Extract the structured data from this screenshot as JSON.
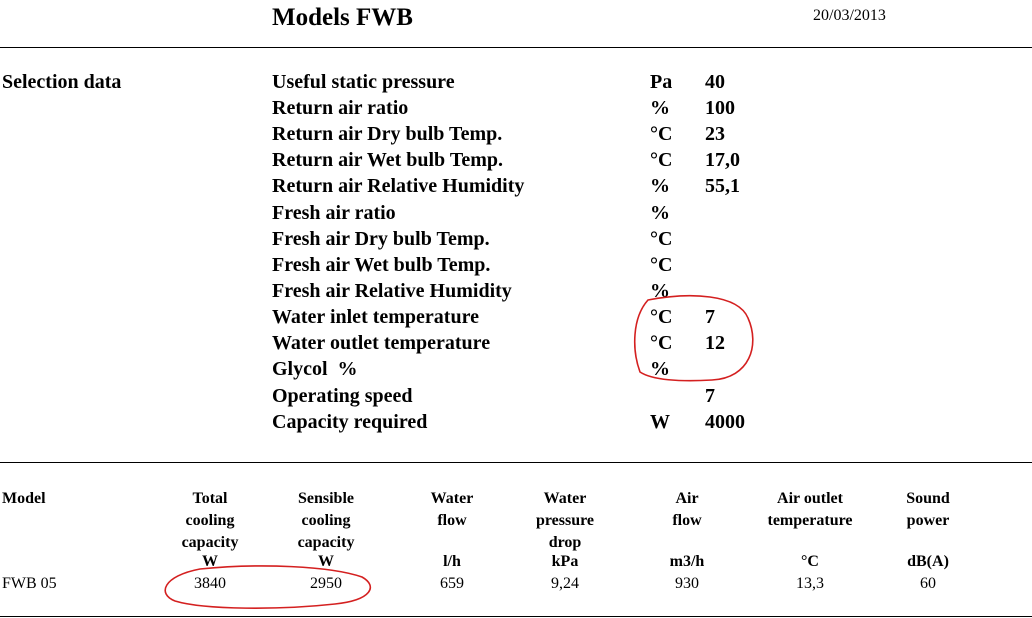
{
  "header": {
    "title": "Models FWB",
    "date": "20/03/2013"
  },
  "selection": {
    "section_label": "Selection data",
    "rows": [
      {
        "label": "Useful static pressure",
        "unit": "Pa",
        "value": "40"
      },
      {
        "label": "Return air ratio",
        "unit": "%",
        "value": "100"
      },
      {
        "label": "Return air Dry bulb Temp.",
        "unit": "°C",
        "value": "23"
      },
      {
        "label": "Return air Wet bulb Temp.",
        "unit": "°C",
        "value": "17,0"
      },
      {
        "label": "Return air Relative Humidity",
        "unit": "%",
        "value": "55,1"
      },
      {
        "label": "Fresh air ratio",
        "unit": "%",
        "value": ""
      },
      {
        "label": "Fresh air Dry bulb Temp.",
        "unit": "°C",
        "value": ""
      },
      {
        "label": "Fresh air Wet bulb Temp.",
        "unit": "°C",
        "value": ""
      },
      {
        "label": "Fresh air Relative Humidity",
        "unit": "%",
        "value": ""
      },
      {
        "label": "Water inlet temperature",
        "unit": "°C",
        "value": "7"
      },
      {
        "label": "Water outlet temperature",
        "unit": "°C",
        "value": "12"
      },
      {
        "label": "Glycol  %",
        "unit": "%",
        "value": ""
      },
      {
        "label": "Operating speed",
        "unit": "",
        "value": "7"
      },
      {
        "label": "Capacity required",
        "unit": "W",
        "value": "4000"
      }
    ]
  },
  "results": {
    "columns": [
      {
        "lines": [
          "Model"
        ],
        "unit": ""
      },
      {
        "lines": [
          "Total",
          "cooling",
          "capacity"
        ],
        "unit": "W"
      },
      {
        "lines": [
          "Sensible",
          "cooling",
          "capacity"
        ],
        "unit": "W"
      },
      {
        "lines": [
          "Water",
          "flow"
        ],
        "unit": "l/h"
      },
      {
        "lines": [
          "Water",
          "pressure",
          "drop"
        ],
        "unit": "kPa"
      },
      {
        "lines": [
          "Air",
          "flow"
        ],
        "unit": "m3/h"
      },
      {
        "lines": [
          "Air outlet",
          "temperature"
        ],
        "unit": "°C"
      },
      {
        "lines": [
          "Sound",
          "power"
        ],
        "unit": "dB(A)"
      }
    ],
    "rows": [
      {
        "cells": [
          "FWB 05",
          "3840",
          "2950",
          "659",
          "9,24",
          "930",
          "13,3",
          "60"
        ]
      }
    ]
  },
  "annotations": {
    "color": "#d42020"
  }
}
